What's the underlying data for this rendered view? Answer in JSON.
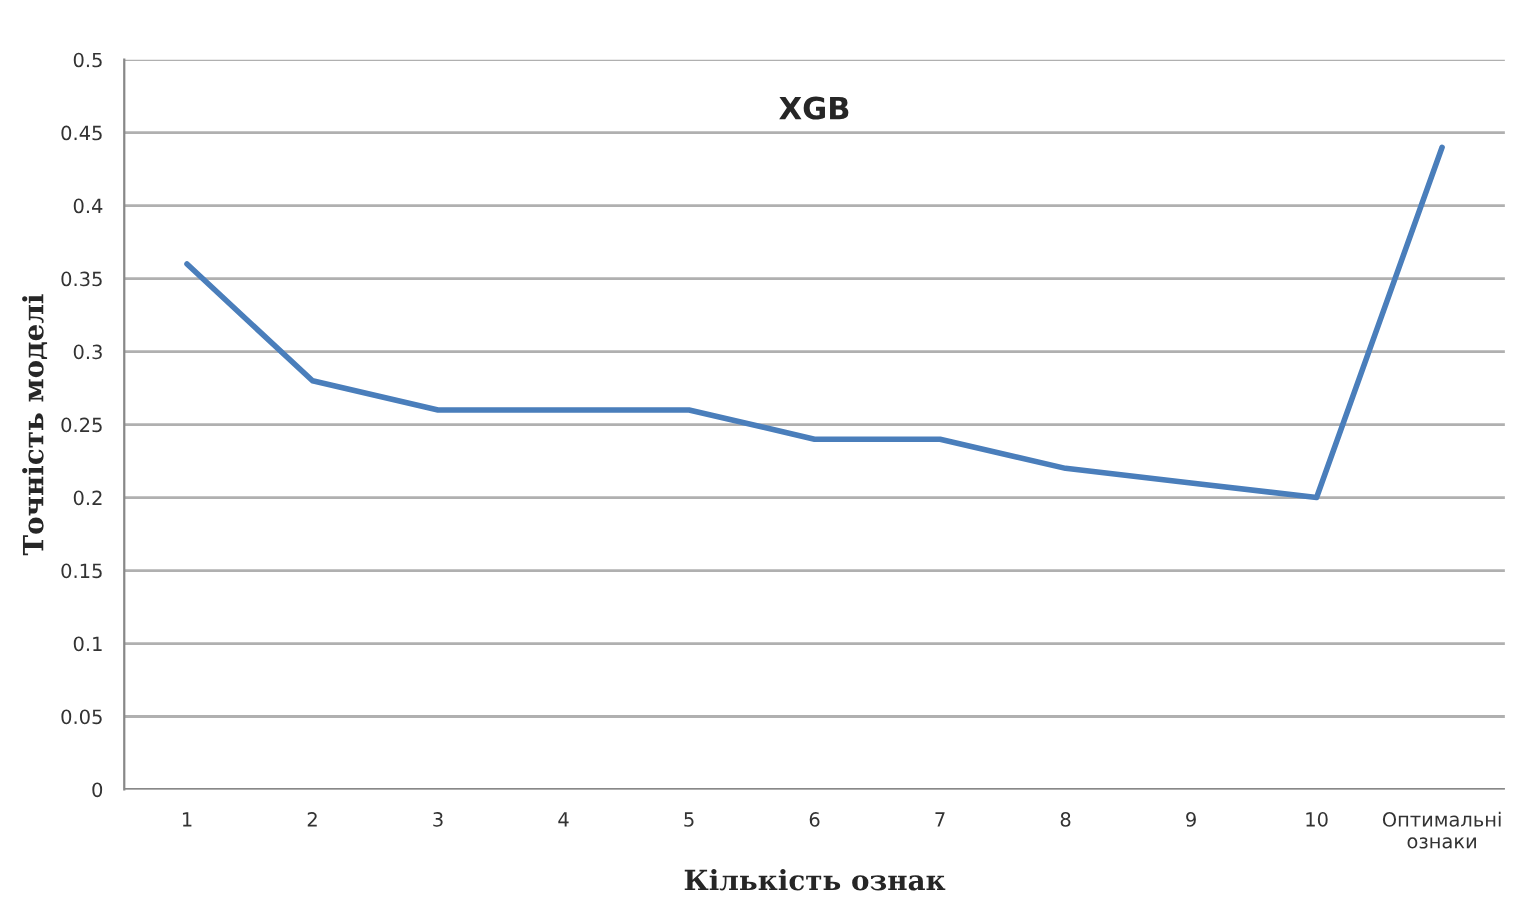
{
  "chart_data": {
    "type": "line",
    "title": "XGB",
    "xlabel": "Кількість ознак",
    "ylabel": "Точність моделі",
    "categories": [
      "1",
      "2",
      "3",
      "4",
      "5",
      "6",
      "7",
      "8",
      "9",
      "10",
      "Оптимальні\nознаки"
    ],
    "series": [
      {
        "color": "#4a7ebb",
        "values": [
          0.36,
          0.28,
          0.26,
          0.26,
          0.26,
          0.24,
          0.24,
          0.22,
          0.21,
          0.2,
          0.44
        ]
      }
    ],
    "ylim": [
      0,
      0.5
    ],
    "yticks": [
      0,
      0.05,
      0.1,
      0.15,
      0.2,
      0.25,
      0.3,
      0.35,
      0.4,
      0.45,
      0.5
    ],
    "grid": "y",
    "legend": false,
    "marker": "none",
    "line_style": "solid"
  }
}
